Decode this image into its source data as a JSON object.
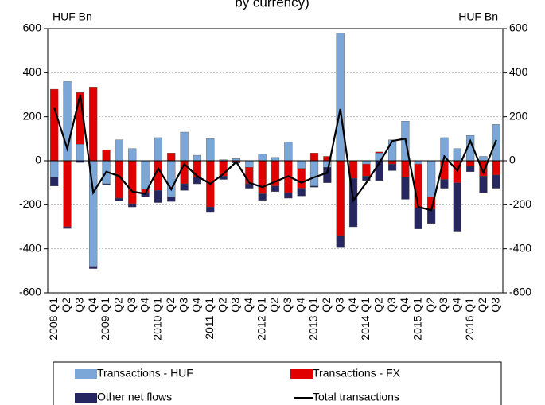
{
  "chart_data": {
    "type": "bar",
    "title": "by currency)",
    "ylabel": "HUF Bn",
    "y2label": "HUF Bn",
    "categories": [
      "2008 Q1",
      "Q2",
      "Q3",
      "Q4",
      "2009 Q1",
      "Q2",
      "Q3",
      "Q4",
      "2010 Q1",
      "Q2",
      "Q3",
      "Q4",
      "2011 Q1",
      "Q2",
      "Q3",
      "Q4",
      "2012 Q1",
      "Q2",
      "Q3",
      "Q4",
      "2013 Q1",
      "Q2",
      "Q3",
      "Q4",
      "2014 Q1",
      "Q2",
      "Q3",
      "Q4",
      "2015 Q1",
      "Q2",
      "Q3",
      "Q4",
      "2016 Q1",
      "Q2",
      "Q3"
    ],
    "series": [
      {
        "name": "Transactions - HUF",
        "type": "bar",
        "color": "#7ba7d8",
        "values": [
          -75,
          360,
          75,
          -480,
          -105,
          95,
          55,
          -130,
          105,
          -165,
          130,
          25,
          100,
          5,
          10,
          -30,
          30,
          15,
          85,
          -35,
          -115,
          -30,
          580,
          0,
          -15,
          35,
          95,
          180,
          -15,
          -165,
          105,
          55,
          115,
          20,
          165
        ]
      },
      {
        "name": "Transactions - FX",
        "type": "bar",
        "color": "#e00000",
        "values": [
          325,
          -300,
          235,
          335,
          50,
          -170,
          -195,
          -15,
          -135,
          35,
          -105,
          -75,
          -210,
          -70,
          -5,
          -75,
          -150,
          -115,
          -145,
          -90,
          35,
          20,
          -340,
          -80,
          -55,
          5,
          -15,
          -75,
          -200,
          -55,
          -85,
          -100,
          -25,
          -70,
          -65
        ]
      },
      {
        "name": "Other net flows",
        "type": "bar",
        "color": "#262660",
        "values": [
          -40,
          -8,
          -8,
          -10,
          -5,
          -12,
          -15,
          -20,
          -55,
          -20,
          -30,
          -30,
          -25,
          -15,
          -5,
          -20,
          -30,
          -25,
          -25,
          -35,
          -5,
          -70,
          -55,
          -220,
          -20,
          -90,
          -30,
          -100,
          -95,
          -65,
          -40,
          -220,
          -25,
          -75,
          -60
        ]
      },
      {
        "name": "Total transactions",
        "type": "line",
        "color": "#000000",
        "values": [
          240,
          55,
          300,
          -145,
          -50,
          -70,
          -140,
          -150,
          -35,
          -130,
          -15,
          -70,
          -105,
          -60,
          -5,
          -100,
          -120,
          -95,
          -70,
          -100,
          -75,
          -55,
          235,
          -180,
          -100,
          -10,
          90,
          100,
          -210,
          -225,
          20,
          -45,
          90,
          -55,
          95
        ]
      }
    ],
    "ylim": [
      -600,
      600
    ],
    "yticks": [
      -600,
      -400,
      -200,
      0,
      200,
      400,
      600
    ],
    "y2lim": [
      -600,
      600
    ],
    "y2ticks": [
      -600,
      -400,
      -200,
      0,
      200,
      400,
      600
    ],
    "grid": true
  }
}
